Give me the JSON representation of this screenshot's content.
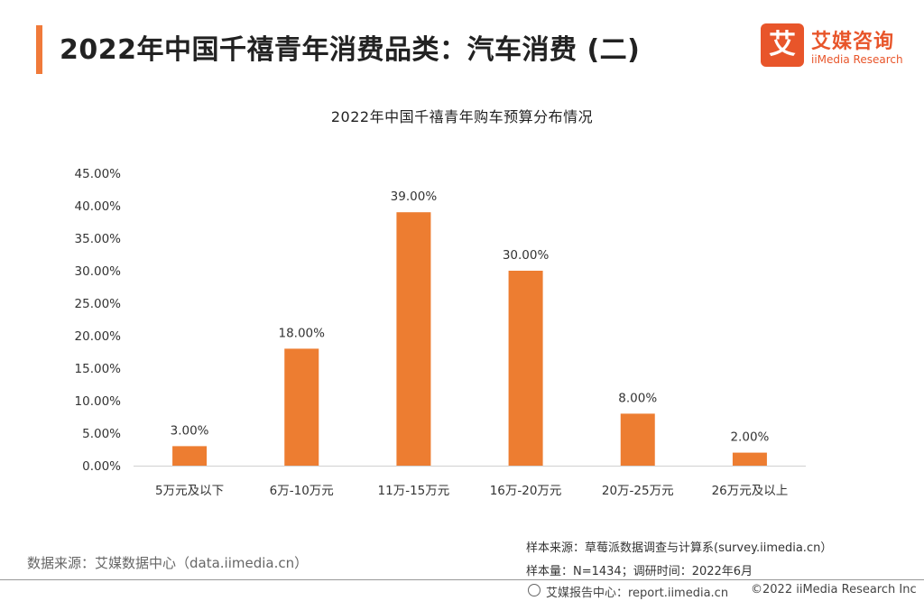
{
  "header": {
    "title": "2022年中国千禧青年消费品类：汽车消费 (二)"
  },
  "logo": {
    "glyph": "艾",
    "cn_name": "艾媒咨询",
    "en_name": "iiMedia Research",
    "brand_color": "#e8552a"
  },
  "chart_data": {
    "type": "bar",
    "title": "2022年中国千禧青年购车预算分布情况",
    "categories": [
      "5万元及以下",
      "6万-10万元",
      "11万-15万元",
      "16万-20万元",
      "20万-25万元",
      "26万元及以上"
    ],
    "values": [
      3.0,
      18.0,
      39.0,
      30.0,
      8.0,
      2.0
    ],
    "value_labels": [
      "3.00%",
      "18.00%",
      "39.00%",
      "30.00%",
      "8.00%",
      "2.00%"
    ],
    "y_ticks": [
      "0.00%",
      "5.00%",
      "10.00%",
      "15.00%",
      "20.00%",
      "25.00%",
      "30.00%",
      "35.00%",
      "40.00%",
      "45.00%"
    ],
    "ylim": [
      0,
      45
    ],
    "xlabel": "",
    "ylabel": "",
    "bar_color": "#ed7d31",
    "grid": false
  },
  "footer": {
    "source_left": "数据来源：艾媒数据中心（data.iimedia.cn）",
    "sample_source": "样本来源：草莓派数据调查与计算系(survey.iimedia.cn）",
    "sample_info": "样本量：N=1434；调研时间：2022年6月",
    "report_site": "艾媒报告中心：report.iimedia.cn",
    "copyright": "©2022  iiMedia Research Inc"
  }
}
